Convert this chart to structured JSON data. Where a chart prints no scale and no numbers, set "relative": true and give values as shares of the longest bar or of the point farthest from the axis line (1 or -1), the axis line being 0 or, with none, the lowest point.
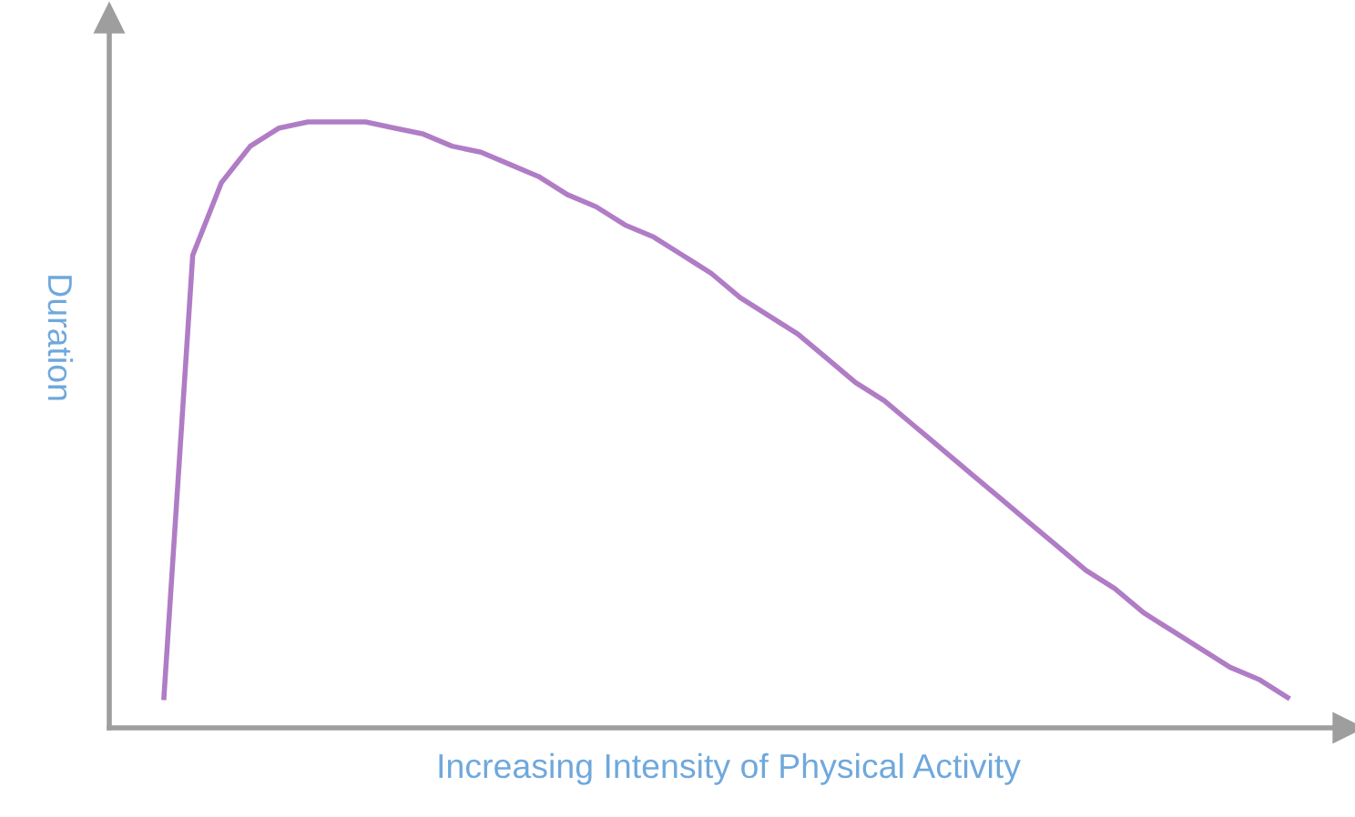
{
  "chart_data": {
    "type": "line",
    "relative": true,
    "xlabel": "Increasing Intensity of Physical Activity",
    "ylabel": "Duration",
    "categories": [
      null,
      null,
      null,
      null,
      null,
      null,
      null,
      null,
      null,
      null,
      null,
      null,
      null,
      null,
      null,
      null,
      null,
      null,
      null,
      null,
      null,
      null,
      null,
      null,
      null,
      null,
      null,
      null,
      null,
      null,
      null,
      null,
      null,
      null,
      null,
      null,
      null,
      null,
      null,
      null
    ],
    "series": [
      {
        "color": "#b07cc6",
        "values": [
          0.05,
          0.78,
          0.9,
          0.96,
          0.99,
          1.0,
          1.0,
          1.0,
          0.99,
          0.98,
          0.96,
          0.95,
          0.93,
          0.91,
          0.88,
          0.86,
          0.83,
          0.81,
          0.78,
          0.75,
          0.71,
          0.68,
          0.65,
          0.61,
          0.57,
          0.54,
          0.5,
          0.46,
          0.42,
          0.38,
          0.34,
          0.3,
          0.26,
          0.23,
          0.19,
          0.16,
          0.13,
          0.1,
          0.08,
          0.05
        ]
      }
    ],
    "legend": false,
    "tick_labels": false,
    "marker": "none",
    "line_style": "solid"
  }
}
